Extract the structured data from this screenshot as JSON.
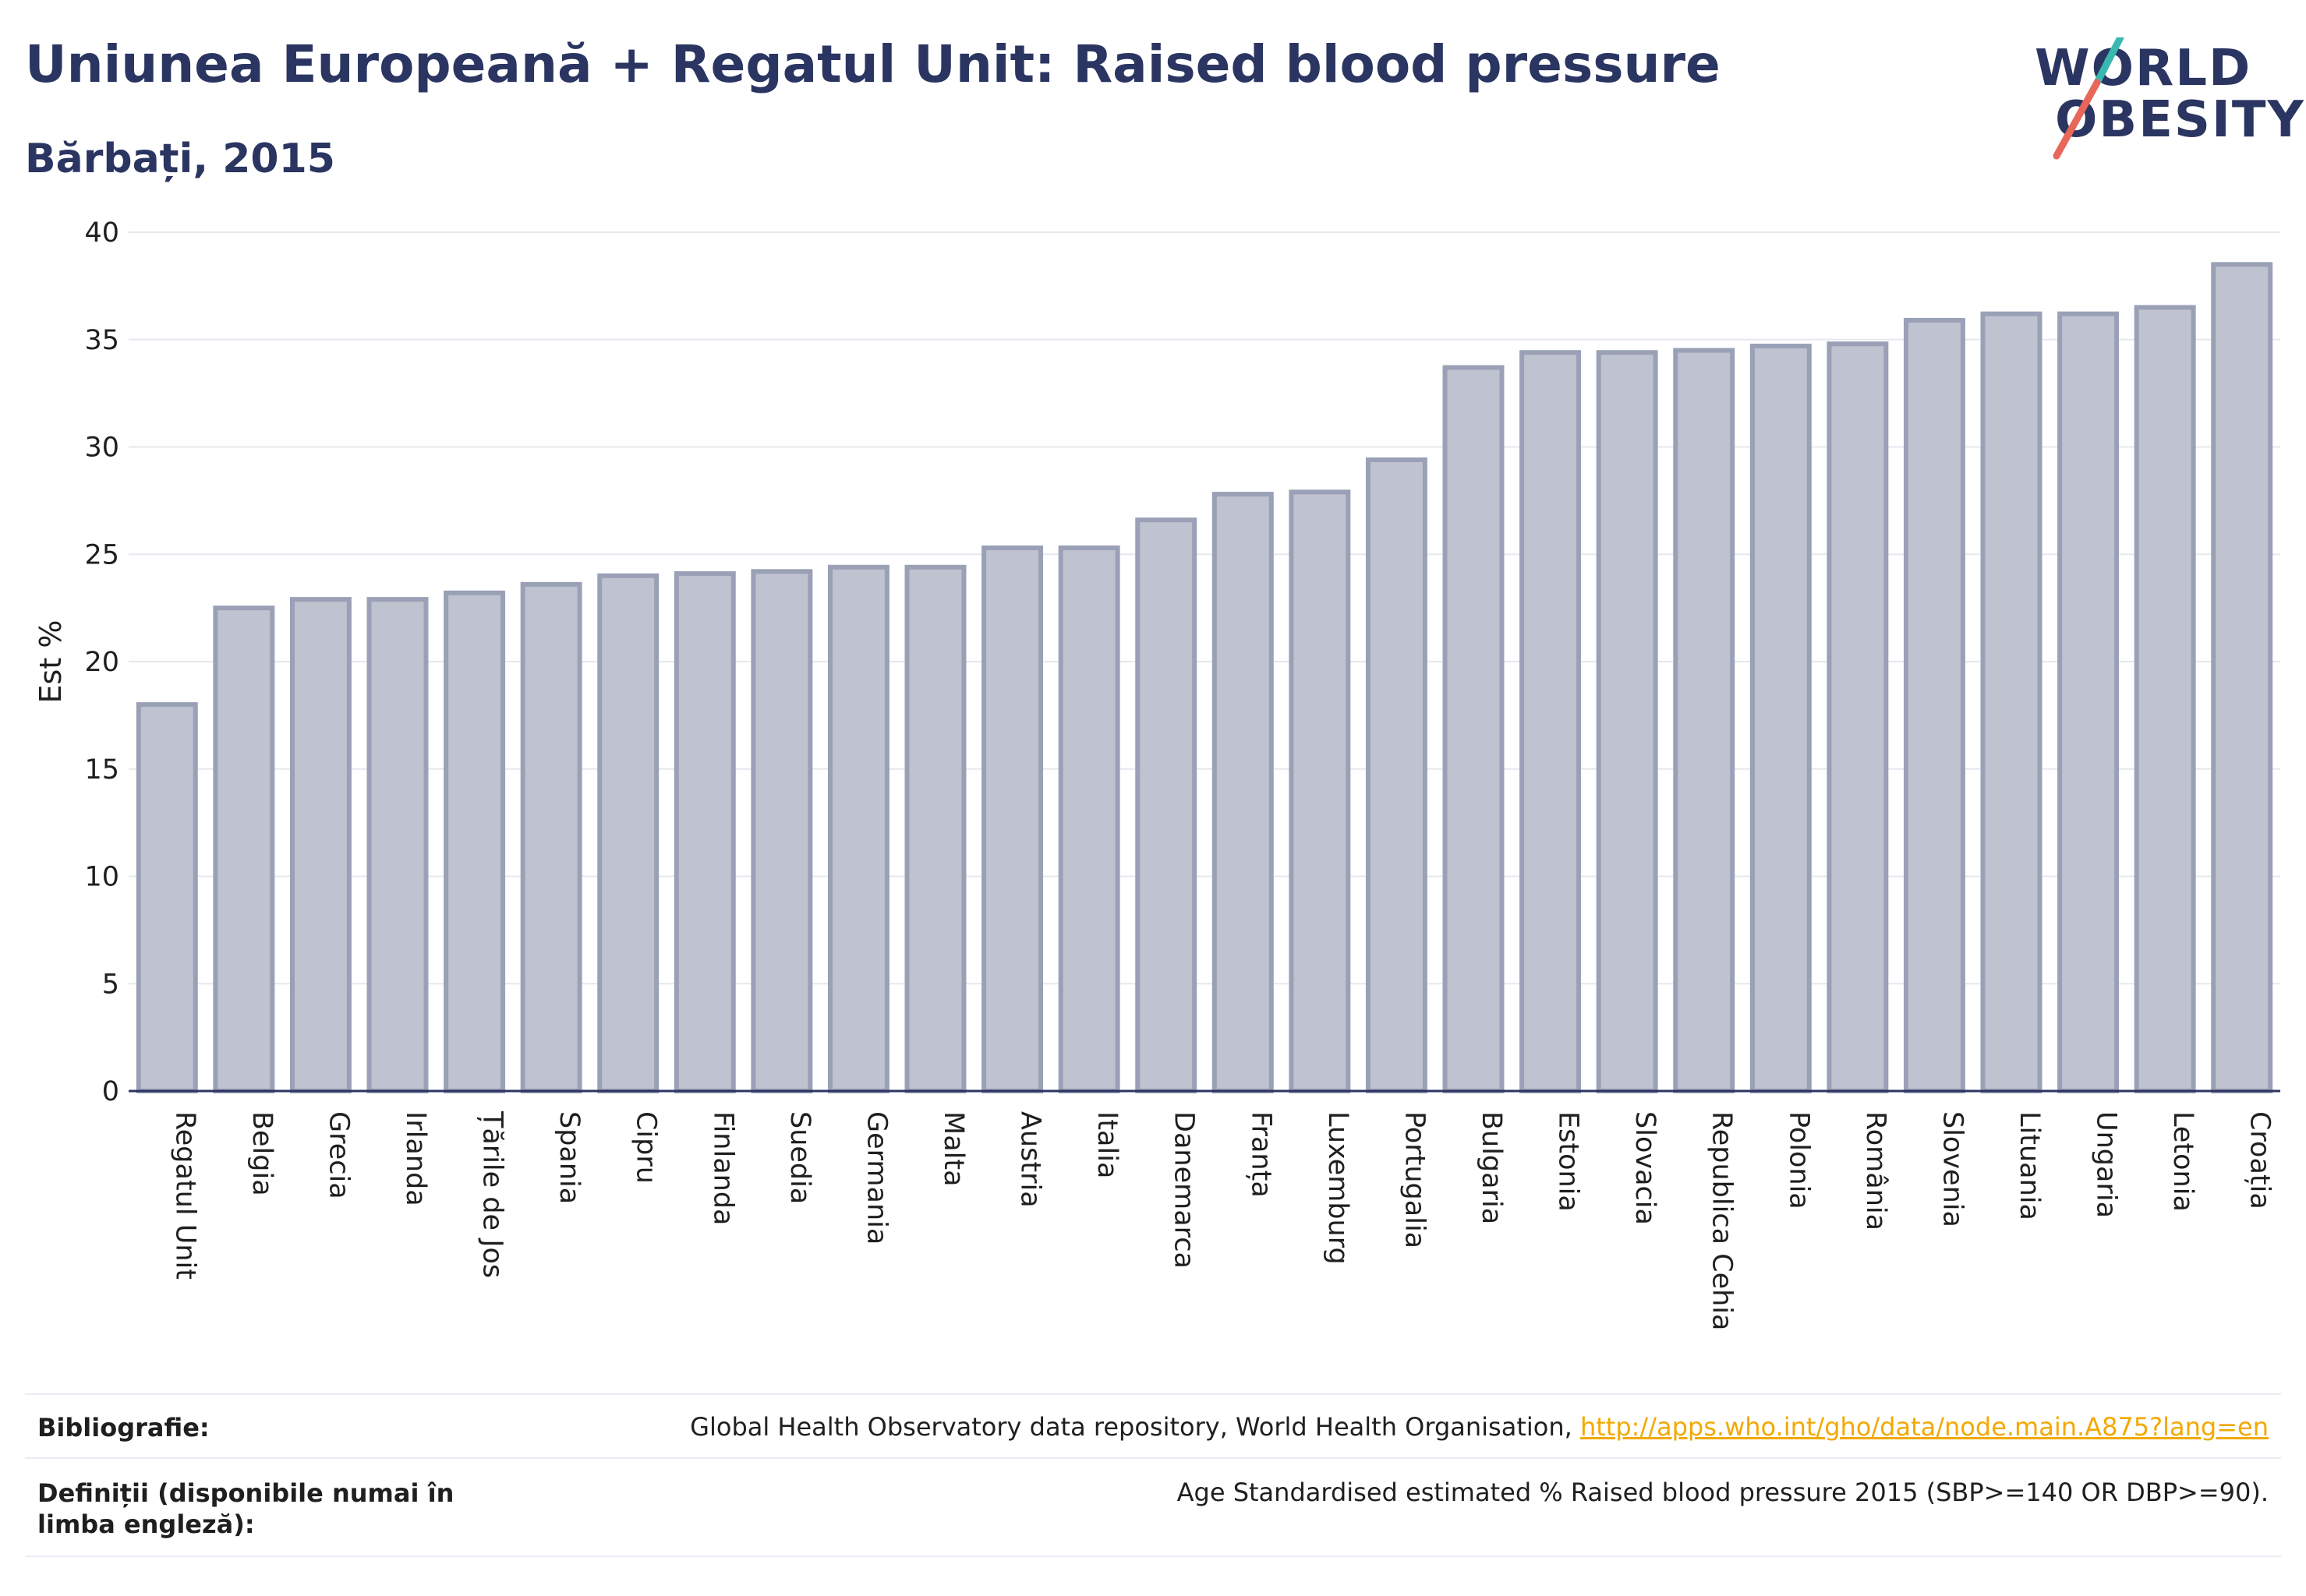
{
  "header": {
    "title": "Uniunea Europeană + Regatul Unit: Raised blood pressure",
    "subtitle": "Bărbați, 2015"
  },
  "logo": {
    "line1": "WORLD",
    "line2": "OBESITY",
    "slash_colors": [
      "#39b8b0",
      "#e8665a"
    ]
  },
  "colors": {
    "bar_fill": "#bfc2cf",
    "bar_stroke": "#9aa0b6",
    "text_primary": "#2b3561",
    "link": "#f2a900"
  },
  "chart_data": {
    "type": "bar",
    "title": "",
    "xlabel": "",
    "ylabel": "Est %",
    "ylim": [
      0,
      40
    ],
    "yticks": [
      0,
      5,
      10,
      15,
      20,
      25,
      30,
      35,
      40
    ],
    "grid": true,
    "categories": [
      "Regatul Unit",
      "Belgia",
      "Grecia",
      "Irlanda",
      "Țările de Jos",
      "Spania",
      "Cipru",
      "Finlanda",
      "Suedia",
      "Germania",
      "Malta",
      "Austria",
      "Italia",
      "Danemarca",
      "Franța",
      "Luxemburg",
      "Portugalia",
      "Bulgaria",
      "Estonia",
      "Slovacia",
      "Republica Cehia",
      "Polonia",
      "România",
      "Slovenia",
      "Lituania",
      "Ungaria",
      "Letonia",
      "Croația"
    ],
    "values": [
      18.0,
      22.5,
      22.9,
      22.9,
      23.2,
      23.6,
      24.0,
      24.1,
      24.2,
      24.4,
      24.4,
      25.3,
      25.3,
      26.6,
      27.8,
      27.9,
      29.4,
      33.7,
      34.4,
      34.4,
      34.5,
      34.7,
      34.8,
      35.9,
      36.2,
      36.2,
      36.5,
      38.5
    ]
  },
  "footer": {
    "bibliography_label": "Bibliografie:",
    "bibliography_text": "Global Health Observatory data repository, World Health Organisation,",
    "bibliography_link": "http://apps.who.int/gho/data/node.main.A875?lang=en",
    "definitions_label": "Definiții (disponibile numai în limba engleză):",
    "definitions_text": "Age Standardised estimated % Raised blood pressure 2015 (SBP>=140 OR DBP>=90)."
  }
}
